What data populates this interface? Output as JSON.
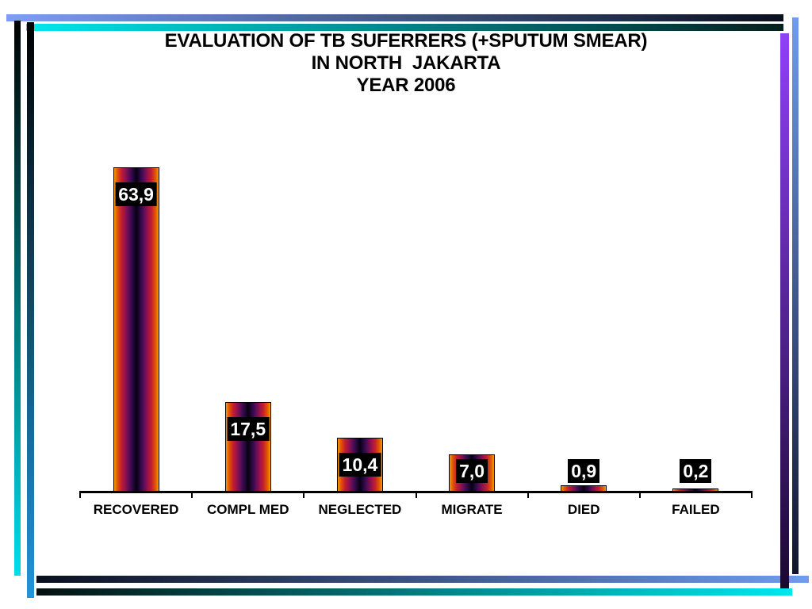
{
  "slide": {
    "background": "#ffffff",
    "title_lines": [
      "EVALUATION OF TB SUFERRERS (+SPUTUM SMEAR)",
      "IN NORTH  JAKARTA",
      "YEAR 2006"
    ]
  },
  "chart_data": {
    "type": "bar",
    "title": "EVALUATION OF TB SUFERRERS (+SPUTUM SMEAR) IN NORTH  JAKARTA YEAR 2006",
    "categories": [
      "RECOVERED",
      "COMPL MED",
      "NEGLECTED",
      "MIGRATE",
      "DIED",
      "FAILED"
    ],
    "values": [
      63.9,
      17.5,
      10.4,
      7.0,
      0.9,
      0.2
    ],
    "value_labels": [
      "63,9",
      "17,5",
      "10,4",
      "7,0",
      "0,9",
      "0,2"
    ],
    "xlabel": "",
    "ylabel": "",
    "ylim": [
      0,
      66
    ],
    "grid": false,
    "legend": false,
    "axis_color": "#000000",
    "value_label_style": {
      "background": "#000000",
      "color": "#ffffff"
    },
    "bar_gradient": [
      "#f59b00",
      "#e35e00",
      "#c41e2e",
      "#8f1050",
      "#4a0d58",
      "#1e0636",
      "#06010e"
    ]
  },
  "decor": {
    "top_blue": [
      "#7b9ff2",
      "#0a0f1e"
    ],
    "top_cyan": [
      "#00e6f0",
      "#03201e"
    ],
    "left_outer": [
      "#000000",
      "#00dce8"
    ],
    "left_inner": [
      "#000000",
      "#2395d5"
    ],
    "right_outer": [
      "#6f9bf0",
      "#10142e"
    ],
    "right_inner": [
      "#9040f8",
      "#1a0830"
    ],
    "bottom_blue": [
      "#0a0f1e",
      "#6f9bf0"
    ],
    "bottom_cyan": [
      "#03100f",
      "#00e6f0"
    ]
  }
}
